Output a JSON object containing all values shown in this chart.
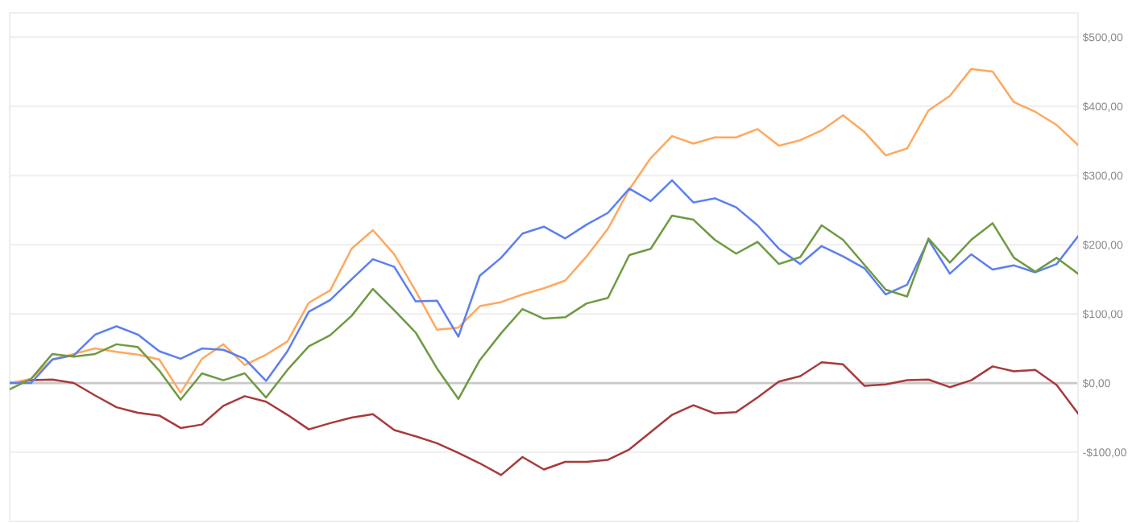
{
  "chart_data": {
    "type": "line",
    "categories": [
      null,
      null,
      null,
      null,
      null,
      null,
      null,
      null,
      null,
      null,
      null,
      null,
      null,
      null,
      null,
      null,
      null,
      null,
      null,
      null,
      null,
      null,
      null,
      null,
      null,
      null,
      null,
      null,
      null,
      null,
      null,
      null,
      null,
      null,
      null,
      null,
      null,
      null,
      null,
      null,
      null,
      null,
      null,
      null,
      null,
      null,
      null,
      null,
      null,
      null,
      null
    ],
    "ylim": [
      -200,
      535
    ],
    "yticks": [
      {
        "value": -100,
        "label": "-$100,00"
      },
      {
        "value": 0,
        "label": "$0,00"
      },
      {
        "value": 100,
        "label": "$100,00"
      },
      {
        "value": 200,
        "label": "$200,00"
      },
      {
        "value": 300,
        "label": "$300,00"
      },
      {
        "value": 400,
        "label": "$400,00"
      },
      {
        "value": 500,
        "label": "$500,00"
      }
    ],
    "grid": "y",
    "ref_lines": [
      {
        "axis": "y",
        "value": 0,
        "color": "#c8c8c8"
      }
    ],
    "series": [
      {
        "color": "#a83a3a",
        "values": [
          0,
          4,
          5,
          0,
          -18,
          -35,
          -43,
          -47,
          -65,
          -60,
          -33,
          -19,
          -27,
          -46,
          -67,
          -58,
          -50,
          -45,
          -68,
          -77,
          -87,
          -101,
          -116,
          -133,
          -107,
          -125,
          -114,
          -114,
          -111,
          -96,
          -71,
          -46,
          -32,
          -44,
          -42,
          -21,
          2,
          10,
          30,
          27,
          -4,
          -2,
          4,
          5,
          -6,
          4,
          24,
          17,
          19,
          -3,
          -44
        ]
      },
      {
        "color": "#ffa85e",
        "values": [
          0,
          6,
          34,
          42,
          50,
          45,
          41,
          34,
          -14,
          35,
          56,
          26,
          41,
          60,
          116,
          134,
          194,
          221,
          186,
          133,
          77,
          80,
          111,
          117,
          128,
          137,
          148,
          183,
          223,
          280,
          325,
          357,
          346,
          355,
          355,
          367,
          343,
          351,
          365,
          387,
          363,
          329,
          339,
          394,
          415,
          454,
          450,
          406,
          392,
          373,
          344
        ]
      },
      {
        "color": "#5b7ff2",
        "values": [
          0,
          0,
          34,
          40,
          70,
          82,
          70,
          46,
          35,
          50,
          48,
          35,
          3,
          46,
          103,
          120,
          150,
          179,
          168,
          118,
          119,
          67,
          155,
          181,
          216,
          226,
          209,
          229,
          246,
          281,
          263,
          293,
          261,
          267,
          254,
          228,
          194,
          172,
          198,
          183,
          166,
          128,
          142,
          207,
          158,
          186,
          164,
          170,
          160,
          172,
          212
        ]
      },
      {
        "color": "#6f9a42",
        "values": [
          -9,
          6,
          42,
          38,
          42,
          56,
          52,
          18,
          -24,
          14,
          4,
          14,
          -21,
          19,
          53,
          69,
          97,
          136,
          105,
          73,
          21,
          -23,
          33,
          72,
          107,
          93,
          95,
          115,
          123,
          185,
          194,
          242,
          236,
          207,
          187,
          204,
          172,
          182,
          228,
          207,
          171,
          135,
          125,
          209,
          174,
          207,
          231,
          181,
          161,
          181,
          158
        ]
      }
    ]
  }
}
